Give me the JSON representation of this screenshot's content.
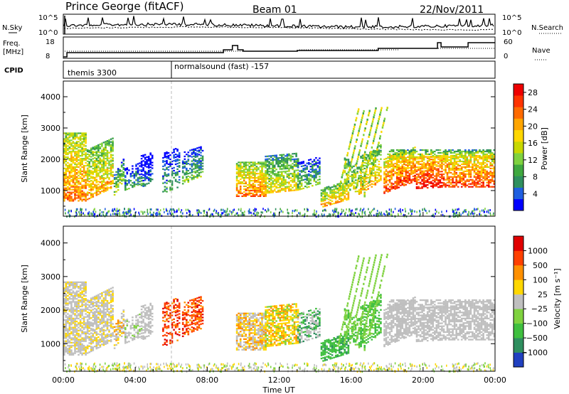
{
  "header": {
    "site": "Prince George (fitACF)",
    "beam": "Beam 01",
    "date": "22/Nov/2011"
  },
  "strip_panels": {
    "nsky": {
      "label": "N.Sky",
      "ticks": [
        "10^5",
        "10^0"
      ]
    },
    "nsearch": {
      "label": "N.Search",
      "ticks": [
        "10^5",
        "10^0"
      ]
    },
    "freq": {
      "label_line1": "Freq.",
      "label_line2": "[MHz]",
      "ticks": [
        "18",
        "8"
      ]
    },
    "nave": {
      "label": "Nave",
      "ticks": [
        "60",
        "0"
      ]
    },
    "cpid": {
      "label": "CPID",
      "modes": [
        "themis 3300",
        "normalsound (fast) -157"
      ]
    }
  },
  "chart_data": [
    {
      "type": "heatmap",
      "title": "Power",
      "ylabel": "Slant Range [km]",
      "xlabel": "Time UT",
      "x_range_hours": [
        0,
        24
      ],
      "ylim": [
        180,
        4500
      ],
      "yticks": [
        "1000",
        "2000",
        "3000",
        "4000"
      ],
      "colorbar": {
        "label": "Power [dB]",
        "ticks": [
          "4",
          "8",
          "12",
          "16",
          "20",
          "24",
          "28"
        ],
        "range": [
          0,
          30
        ],
        "colors": [
          "#0000ff",
          "#1f5fe0",
          "#2f8f5f",
          "#3fa83f",
          "#7fd23f",
          "#c8d800",
          "#ffd700",
          "#ffa500",
          "#ff6a00",
          "#ff3300",
          "#ee0000"
        ]
      }
    },
    {
      "type": "heatmap",
      "title": "Velocity",
      "ylabel": "Slant Range [km]",
      "xlabel": "Time UT",
      "x_range_hours": [
        0,
        24
      ],
      "ylim": [
        180,
        4500
      ],
      "yticks": [
        "1000",
        "2000",
        "3000",
        "4000"
      ],
      "colorbar": {
        "label": "Velocity [m s⁻¹]",
        "ticks": [
          "1000",
          "500",
          "100",
          "25",
          "−25",
          "−100",
          "−500",
          "−1000"
        ],
        "colors": [
          "#2040c0",
          "#2f8f5f",
          "#3fbf3f",
          "#7fd23f",
          "#bfbfbf",
          "#ffd700",
          "#ff9000",
          "#ff4000",
          "#e00000"
        ]
      }
    }
  ],
  "time_axis": {
    "ticks": [
      "00:00",
      "04:00",
      "08:00",
      "12:00",
      "16:00",
      "20:00",
      "00:00"
    ],
    "label": "Time UT"
  }
}
